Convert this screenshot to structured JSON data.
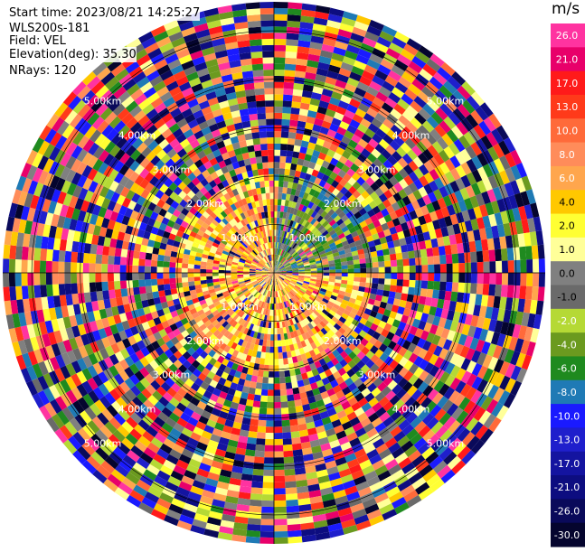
{
  "info": {
    "start_time": "Start time: 2023/08/21 14:25:27",
    "instrument": "WLS200s-181",
    "field": "Field: VEL",
    "elevation": "Elevation(deg): 35.30",
    "nrays": "NRays: 120"
  },
  "chart_data": {
    "type": "heatmap",
    "projection": "polar-ppi",
    "n_rays": 120,
    "range_rings": [
      "1.00km",
      "2.00km",
      "3.00km",
      "4.00km",
      "5.00km"
    ],
    "ring_labels": [
      {
        "text": "1.00km",
        "quadrant": "top-left"
      },
      {
        "text": "1.00km",
        "quadrant": "top-right"
      },
      {
        "text": "1.00km",
        "quadrant": "bottom-left"
      },
      {
        "text": "1.00km",
        "quadrant": "bottom-right"
      },
      {
        "text": "2.00km",
        "quadrant": "top-left"
      },
      {
        "text": "2.00km",
        "quadrant": "top-right"
      },
      {
        "text": "2.00km",
        "quadrant": "bottom-left"
      },
      {
        "text": "2.00km",
        "quadrant": "bottom-right"
      },
      {
        "text": "3.00km",
        "quadrant": "top-left"
      },
      {
        "text": "3.00km",
        "quadrant": "top-right"
      },
      {
        "text": "3.00km",
        "quadrant": "bottom-left"
      },
      {
        "text": "3.00km",
        "quadrant": "bottom-right"
      },
      {
        "text": "4.00km",
        "quadrant": "top-left"
      },
      {
        "text": "4.00km",
        "quadrant": "top-right"
      },
      {
        "text": "4.00km",
        "quadrant": "bottom-left"
      },
      {
        "text": "4.00km",
        "quadrant": "bottom-right"
      },
      {
        "text": "5.00km",
        "quadrant": "top-left"
      },
      {
        "text": "5.00km",
        "quadrant": "top-right"
      },
      {
        "text": "5.00km",
        "quadrant": "bottom-left"
      },
      {
        "text": "5.00km",
        "quadrant": "bottom-right"
      }
    ],
    "colorbar": {
      "unit": "m/s",
      "ticks": [
        "26.0",
        "21.0",
        "17.0",
        "13.0",
        "10.0",
        "8.0",
        "6.0",
        "4.0",
        "2.0",
        "1.0",
        "0.0",
        "-1.0",
        "-2.0",
        "-4.0",
        "-6.0",
        "-8.0",
        "-10.0",
        "-13.0",
        "-17.0",
        "-21.0",
        "-26.0",
        "-30.0"
      ],
      "colors": [
        "#ff33a0",
        "#e8006a",
        "#ff1a1a",
        "#ff3a1a",
        "#ff6a3a",
        "#ff8c5a",
        "#ffa64d",
        "#ffc800",
        "#ffff33",
        "#ffff99",
        "#808080",
        "#6a6a6a",
        "#b5d935",
        "#6b9a1f",
        "#1f8a1f",
        "#1f7ab5",
        "#1a1aff",
        "#1f1fcc",
        "#1414a0",
        "#0d0d80",
        "#0a0a5a",
        "#05052e"
      ]
    }
  }
}
